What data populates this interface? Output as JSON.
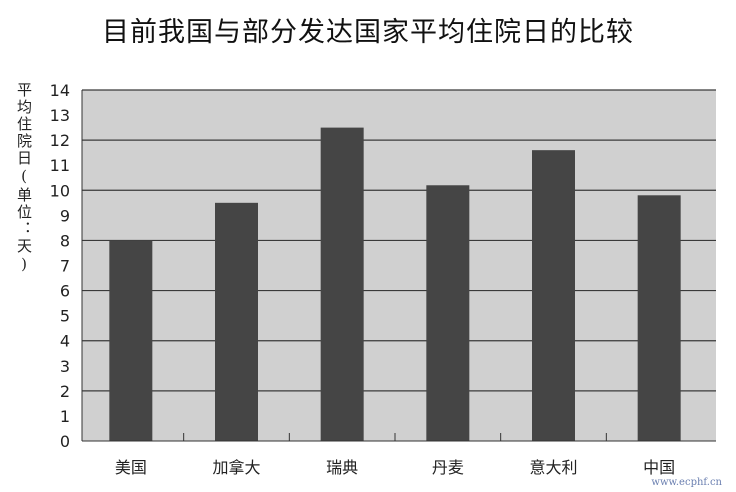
{
  "chart_data": {
    "type": "bar",
    "title": "目前我国与部分发达国家平均住院日的比较",
    "ylabel": "平均住院日(单位：天)",
    "xlabel": "",
    "categories": [
      "美国",
      "加拿大",
      "瑞典",
      "丹麦",
      "意大利",
      "中国"
    ],
    "values": [
      8.0,
      9.5,
      12.5,
      10.2,
      11.6,
      9.8
    ],
    "ylim": [
      0,
      14
    ],
    "yticks": [
      0,
      1,
      2,
      3,
      4,
      5,
      6,
      7,
      8,
      9,
      10,
      11,
      12,
      13,
      14
    ],
    "grid": true,
    "legend": "none",
    "colors": {
      "bar": "#454545",
      "plot_background": "#d0d0d0",
      "gridline": "#3a3a3a"
    }
  },
  "watermark": "www.ecphf.cn"
}
